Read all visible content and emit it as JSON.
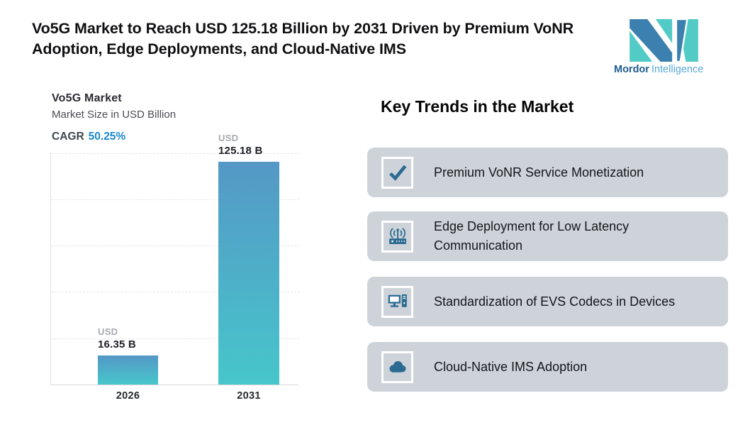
{
  "header": {
    "title": "Vo5G Market to Reach USD 125.18 Billion by 2031 Driven by Premium VoNR Adoption, Edge Deployments, and Cloud-Native IMS",
    "logo": {
      "brand_bold": "Mordor",
      "brand_light": "Intelligence"
    }
  },
  "chart": {
    "title": "Vo5G Market",
    "subtitle": "Market Size in USD Billion",
    "cagr_label": "CAGR",
    "cagr_value": "50.25%"
  },
  "chart_data": {
    "type": "bar",
    "title": "Vo5G Market",
    "subtitle": "Market Size in USD Billion",
    "categories": [
      "2026",
      "2031"
    ],
    "values": [
      16.35,
      125.18
    ],
    "unit": "USD Billion",
    "cagr_percent": 50.25,
    "bar_labels": [
      {
        "currency": "USD",
        "value": "16.35 B"
      },
      {
        "currency": "USD",
        "value": "125.18 B"
      }
    ],
    "ylim": [
      0,
      130
    ],
    "grid": "horizontal-dashed",
    "legend": "none",
    "bar_gradient": [
      "#5498c6",
      "#47c6cb"
    ]
  },
  "trends": {
    "heading": "Key Trends in the Market",
    "cards": [
      {
        "icon": "check-icon",
        "label": "Premium VoNR Service Monetization"
      },
      {
        "icon": "wireless-router-icon",
        "label": "Edge Deployment for Low Latency Communication"
      },
      {
        "icon": "desktop-computer-icon",
        "label": "Standardization of EVS Codecs in Devices"
      },
      {
        "icon": "cloud-icon",
        "label": "Cloud-Native IMS Adoption"
      }
    ]
  },
  "colors": {
    "accent_blue": "#1c89cd",
    "icon_blue": "#2b6b92",
    "card_bg": "#cdd3d9",
    "bar_top": "#5498c6",
    "bar_bottom": "#47c6cb",
    "logo_blue": "#3c80b0",
    "logo_teal": "#52cbc7"
  }
}
